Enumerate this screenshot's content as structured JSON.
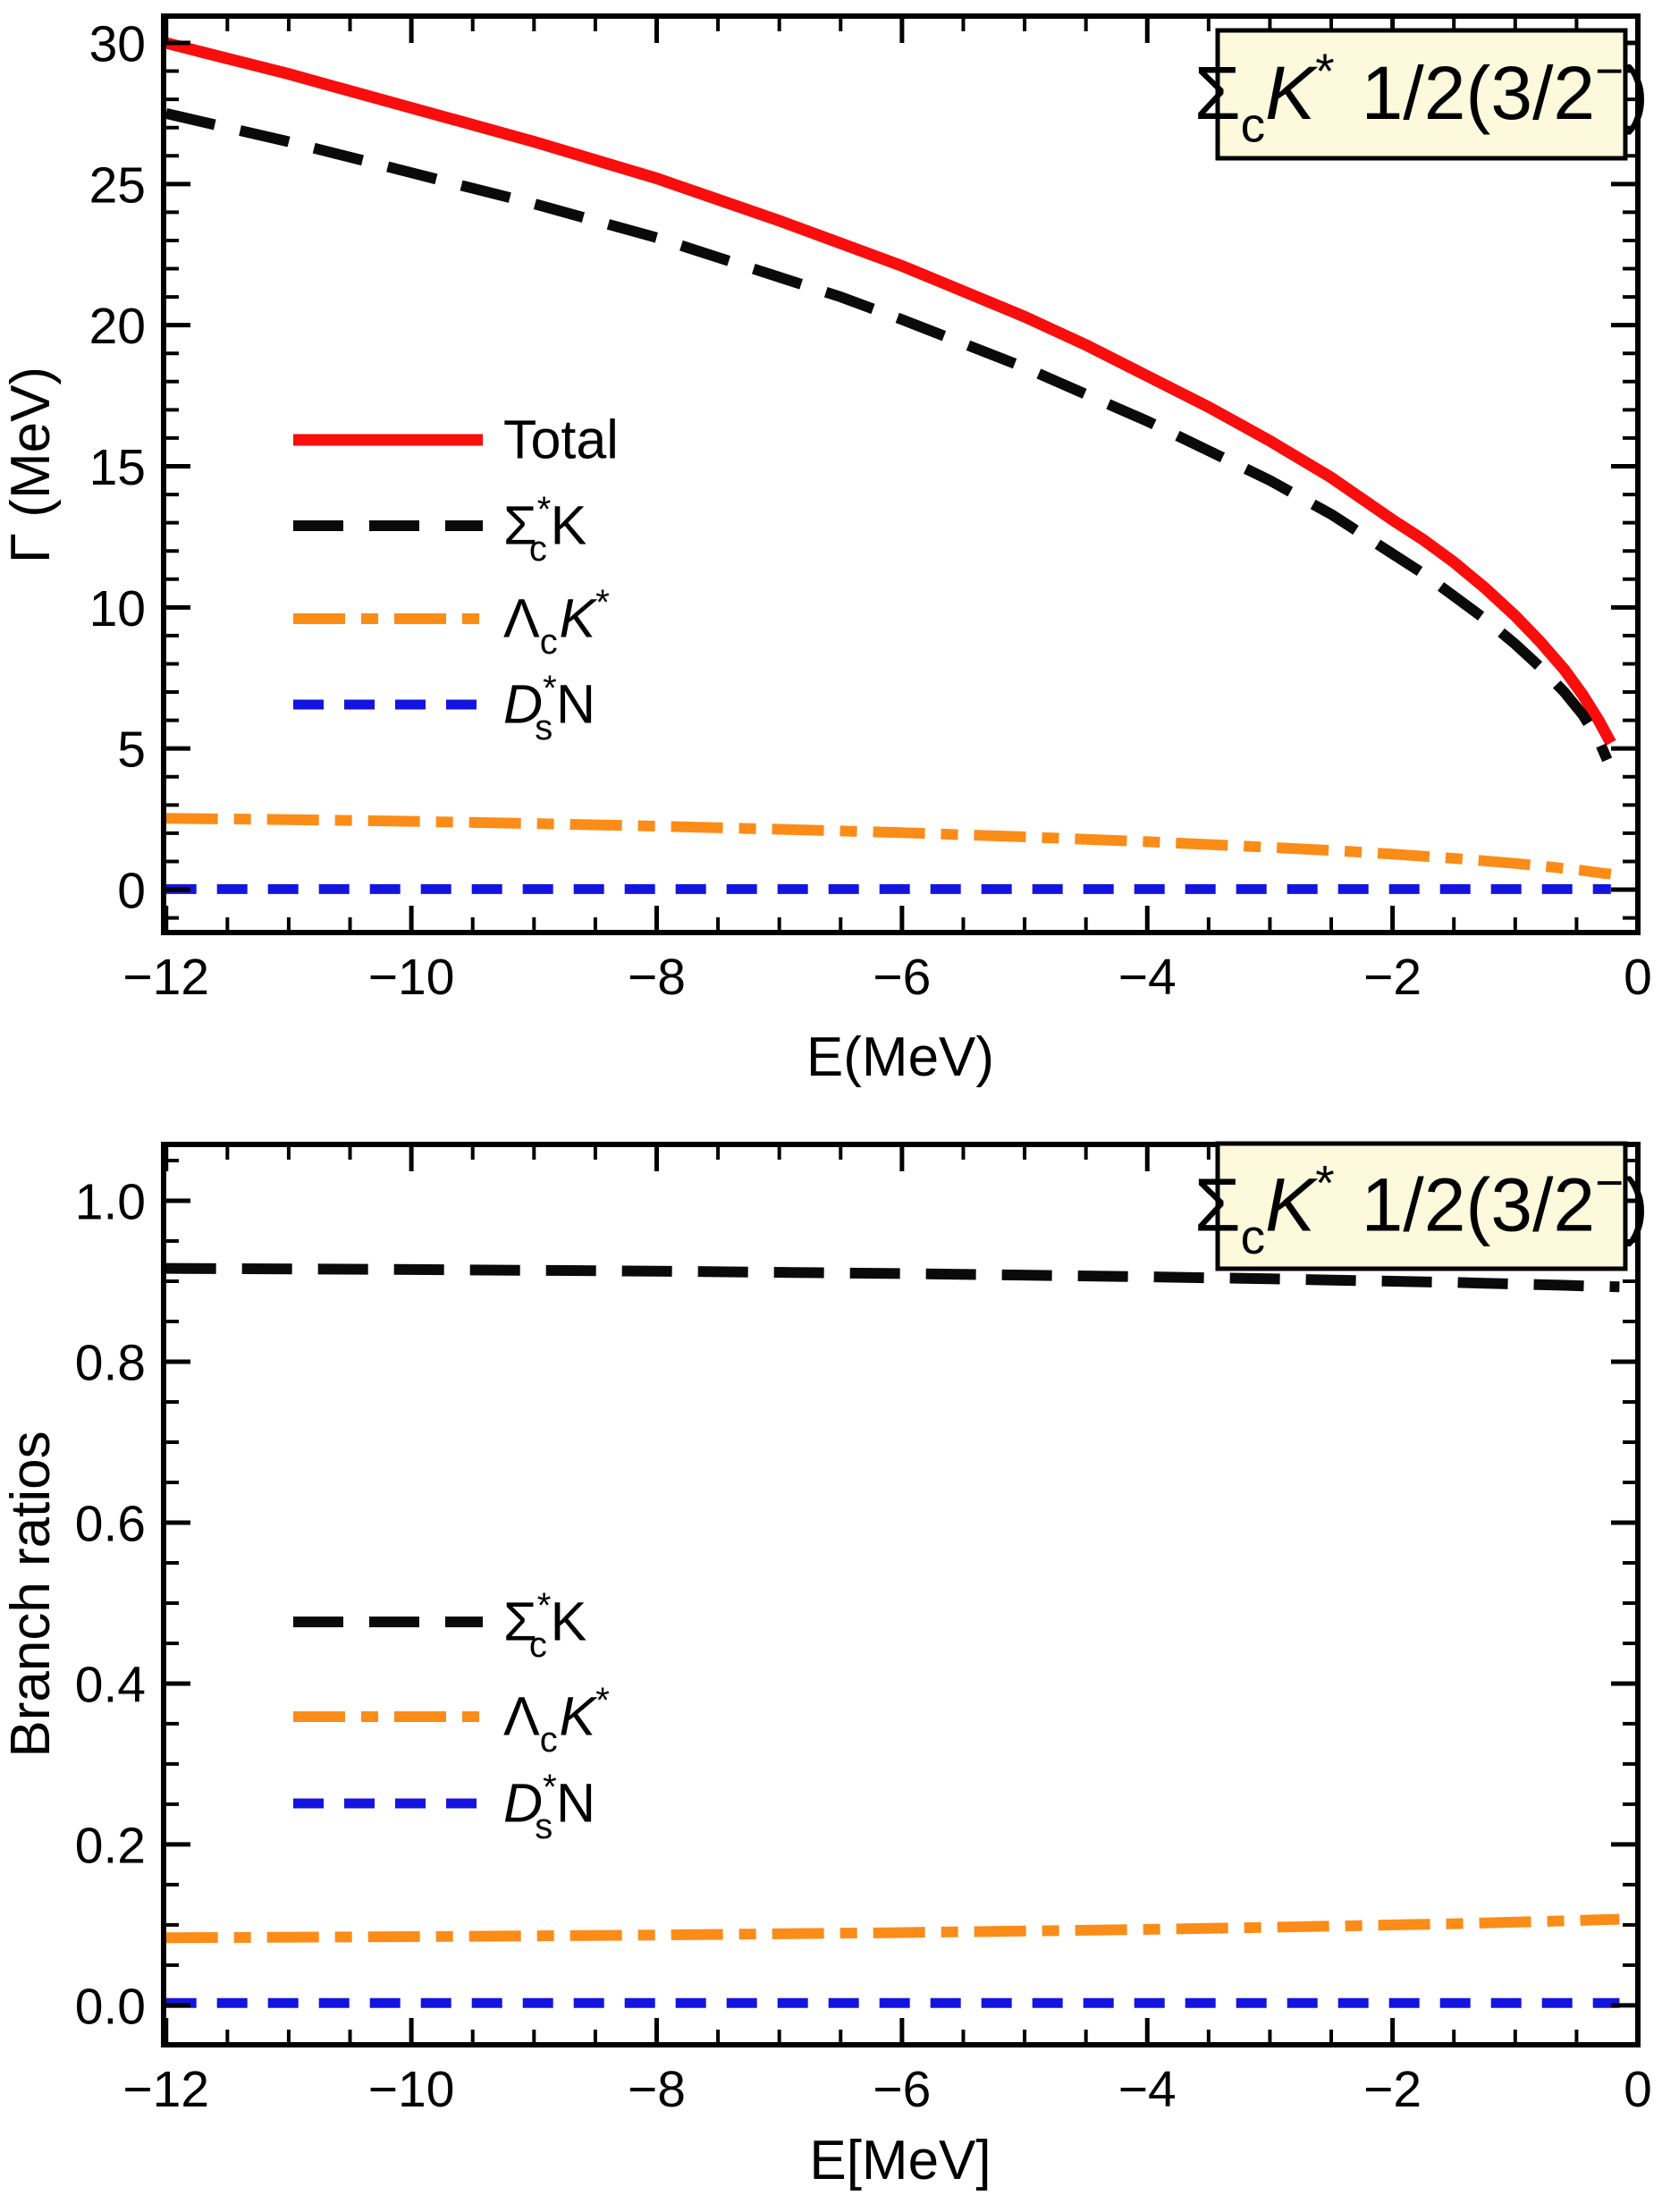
{
  "figure": {
    "background": "#ffffff",
    "frame_color": "#000000",
    "title_box": {
      "bg": "#FCF9DC",
      "border": "#000000"
    }
  },
  "chart_data": [
    {
      "id": "width-panel",
      "type": "line",
      "title_plain": "ΣcK* 1/2(3/2−)",
      "title_segments": [
        {
          "t": "Σ"
        },
        {
          "t": "c",
          "v": "sub"
        },
        {
          "t": "K",
          "it": 1
        },
        {
          "t": "*",
          "v": "sup"
        },
        {
          "t": " 1/2(3/2",
          "dxe": 0.08
        },
        {
          "t": "−",
          "v": "sup"
        },
        {
          "t": ")"
        }
      ],
      "xlabel": "E(MeV)",
      "ylabel": "Γ (MeV)",
      "xlim": [
        -12.02,
        0
      ],
      "ylim": [
        -1.52,
        30.95
      ],
      "xticks": {
        "values": [
          -12,
          -10,
          -8,
          -6,
          -4,
          -2,
          0
        ],
        "labels": [
          "−12",
          "−10",
          "−8",
          "−6",
          "−4",
          "−2",
          "0"
        ],
        "minor_step": 0.5
      },
      "yticks": {
        "values": [
          0,
          5,
          10,
          15,
          20,
          25,
          30
        ],
        "labels": [
          "0",
          "5",
          "10",
          "15",
          "20",
          "25",
          "30"
        ],
        "minor_step": 1
      },
      "series": [
        {
          "name": "Total",
          "color": "#F90D0D",
          "width": 13,
          "dash": [],
          "x": [
            -12,
            -11.5,
            -11,
            -10.5,
            -10,
            -9.5,
            -9,
            -8.5,
            -8,
            -7.5,
            -7,
            -6.5,
            -6,
            -5.5,
            -5,
            -4.5,
            -4,
            -3.5,
            -3,
            -2.5,
            -2,
            -1.75,
            -1.5,
            -1.25,
            -1,
            -0.8,
            -0.6,
            -0.45,
            -0.32,
            -0.22
          ],
          "y": [
            30.0,
            29.45,
            28.9,
            28.3,
            27.7,
            27.1,
            26.5,
            25.85,
            25.2,
            24.45,
            23.7,
            22.9,
            22.1,
            21.2,
            20.3,
            19.3,
            18.2,
            17.1,
            15.9,
            14.6,
            13.1,
            12.4,
            11.6,
            10.7,
            9.7,
            8.8,
            7.8,
            6.9,
            6.0,
            5.2
          ]
        },
        {
          "name": "Σ*cK",
          "color": "#0A0A0A",
          "width": 12,
          "dash": [
            56,
            29
          ],
          "x": [
            -12,
            -11.5,
            -11,
            -10.5,
            -10,
            -9.5,
            -9,
            -8.5,
            -8,
            -7.5,
            -7,
            -6.5,
            -6,
            -5.5,
            -5,
            -4.5,
            -4,
            -3.5,
            -3,
            -2.5,
            -2,
            -1.75,
            -1.5,
            -1.25,
            -1,
            -0.8,
            -0.6,
            -0.45,
            -0.32,
            -0.25
          ],
          "y": [
            27.5,
            27.0,
            26.5,
            25.95,
            25.4,
            24.85,
            24.3,
            23.7,
            23.1,
            22.4,
            21.7,
            21.0,
            20.2,
            19.35,
            18.5,
            17.55,
            16.6,
            15.55,
            14.5,
            13.3,
            11.9,
            11.2,
            10.4,
            9.6,
            8.7,
            7.9,
            7.0,
            6.2,
            5.3,
            4.6
          ]
        },
        {
          "name": "ΛcK*",
          "color": "#FB8C17",
          "width": 12,
          "dash": [
            58,
            18,
            19,
            18
          ],
          "x": [
            -12,
            -11,
            -10,
            -9,
            -8,
            -7,
            -6,
            -5,
            -4,
            -3,
            -2.5,
            -2,
            -1.5,
            -1,
            -0.7,
            -0.45,
            -0.3,
            -0.22
          ],
          "y": [
            2.53,
            2.48,
            2.42,
            2.34,
            2.25,
            2.14,
            2.02,
            1.87,
            1.7,
            1.5,
            1.39,
            1.26,
            1.11,
            0.93,
            0.8,
            0.68,
            0.59,
            0.55
          ]
        },
        {
          "name": "D*sN",
          "color": "#1414E0",
          "width": 11,
          "dash": [
            34,
            23
          ],
          "x": [
            -12,
            -0.22
          ],
          "y": [
            0.02,
            0.02
          ]
        }
      ],
      "legend_rows": [
        {
          "series": 0,
          "segments": [
            {
              "t": "Total"
            }
          ]
        },
        {
          "series": 1,
          "segments": [
            {
              "t": "Σ"
            },
            {
              "t": "*",
              "v": "sup"
            },
            {
              "t": "c",
              "v": "sub",
              "dxe": -0.4
            },
            {
              "t": "K",
              "dxe": 0.06
            }
          ]
        },
        {
          "series": 2,
          "segments": [
            {
              "t": "Λ"
            },
            {
              "t": "c",
              "v": "sub"
            },
            {
              "t": "K",
              "it": 1,
              "dxe": 0.03
            },
            {
              "t": "*",
              "v": "sup"
            }
          ]
        },
        {
          "series": 3,
          "segments": [
            {
              "t": "D",
              "it": 1
            },
            {
              "t": "*",
              "v": "sup"
            },
            {
              "t": "s",
              "v": "sub",
              "dxe": -0.4
            },
            {
              "t": "N",
              "dxe": 0.06
            }
          ]
        }
      ]
    },
    {
      "id": "branch-panel",
      "type": "line",
      "title_plain": "ΣcK* 1/2(3/2−)",
      "title_segments": [
        {
          "t": "Σ"
        },
        {
          "t": "c",
          "v": "sub"
        },
        {
          "t": "K",
          "it": 1
        },
        {
          "t": "*",
          "v": "sup"
        },
        {
          "t": " 1/2(3/2",
          "dxe": 0.08
        },
        {
          "t": "−",
          "v": "sup"
        },
        {
          "t": ")"
        }
      ],
      "xlabel": "E[MeV]",
      "ylabel": "Branch ratios",
      "xlim": [
        -12.02,
        0
      ],
      "ylim": [
        -0.049,
        1.07
      ],
      "xticks": {
        "values": [
          -12,
          -10,
          -8,
          -6,
          -4,
          -2,
          0
        ],
        "labels": [
          "−12",
          "−10",
          "−8",
          "−6",
          "−4",
          "−2",
          "0"
        ],
        "minor_step": 0.5
      },
      "yticks": {
        "values": [
          0.0,
          0.2,
          0.4,
          0.6,
          0.8,
          1.0
        ],
        "labels": [
          "0.0",
          "0.2",
          "0.4",
          "0.6",
          "0.8",
          "1.0"
        ],
        "minor_step": 0.05
      },
      "series": [
        {
          "name": "Σ*cK",
          "color": "#0A0A0A",
          "width": 12,
          "dash": [
            56,
            29
          ],
          "x": [
            -12,
            -10,
            -8,
            -6,
            -4,
            -3,
            -2,
            -1.5,
            -1,
            -0.6,
            -0.3,
            -0.15
          ],
          "y": [
            0.916,
            0.9145,
            0.9125,
            0.9095,
            0.9055,
            0.903,
            0.9,
            0.8985,
            0.8965,
            0.895,
            0.8935,
            0.893
          ]
        },
        {
          "name": "ΛcK*",
          "color": "#FB8C17",
          "width": 12,
          "dash": [
            58,
            18,
            19,
            18
          ],
          "x": [
            -12,
            -10,
            -8,
            -6,
            -4,
            -3,
            -2,
            -1.5,
            -1,
            -0.6,
            -0.3,
            -0.15
          ],
          "y": [
            0.084,
            0.0855,
            0.0875,
            0.0905,
            0.0945,
            0.097,
            0.1,
            0.1015,
            0.1035,
            0.105,
            0.1065,
            0.107
          ]
        },
        {
          "name": "D*sN",
          "color": "#1414E0",
          "width": 11,
          "dash": [
            34,
            23
          ],
          "x": [
            -12,
            -0.15
          ],
          "y": [
            0.003,
            0.003
          ]
        }
      ],
      "legend_rows": [
        {
          "series": 0,
          "segments": [
            {
              "t": "Σ"
            },
            {
              "t": "*",
              "v": "sup"
            },
            {
              "t": "c",
              "v": "sub",
              "dxe": -0.4
            },
            {
              "t": "K",
              "dxe": 0.06
            }
          ]
        },
        {
          "series": 1,
          "segments": [
            {
              "t": "Λ"
            },
            {
              "t": "c",
              "v": "sub"
            },
            {
              "t": "K",
              "it": 1,
              "dxe": 0.03
            },
            {
              "t": "*",
              "v": "sup"
            }
          ]
        },
        {
          "series": 2,
          "segments": [
            {
              "t": "D",
              "it": 1
            },
            {
              "t": "*",
              "v": "sup"
            },
            {
              "t": "s",
              "v": "sub",
              "dxe": -0.4
            },
            {
              "t": "N",
              "dxe": 0.06
            }
          ]
        }
      ]
    }
  ]
}
